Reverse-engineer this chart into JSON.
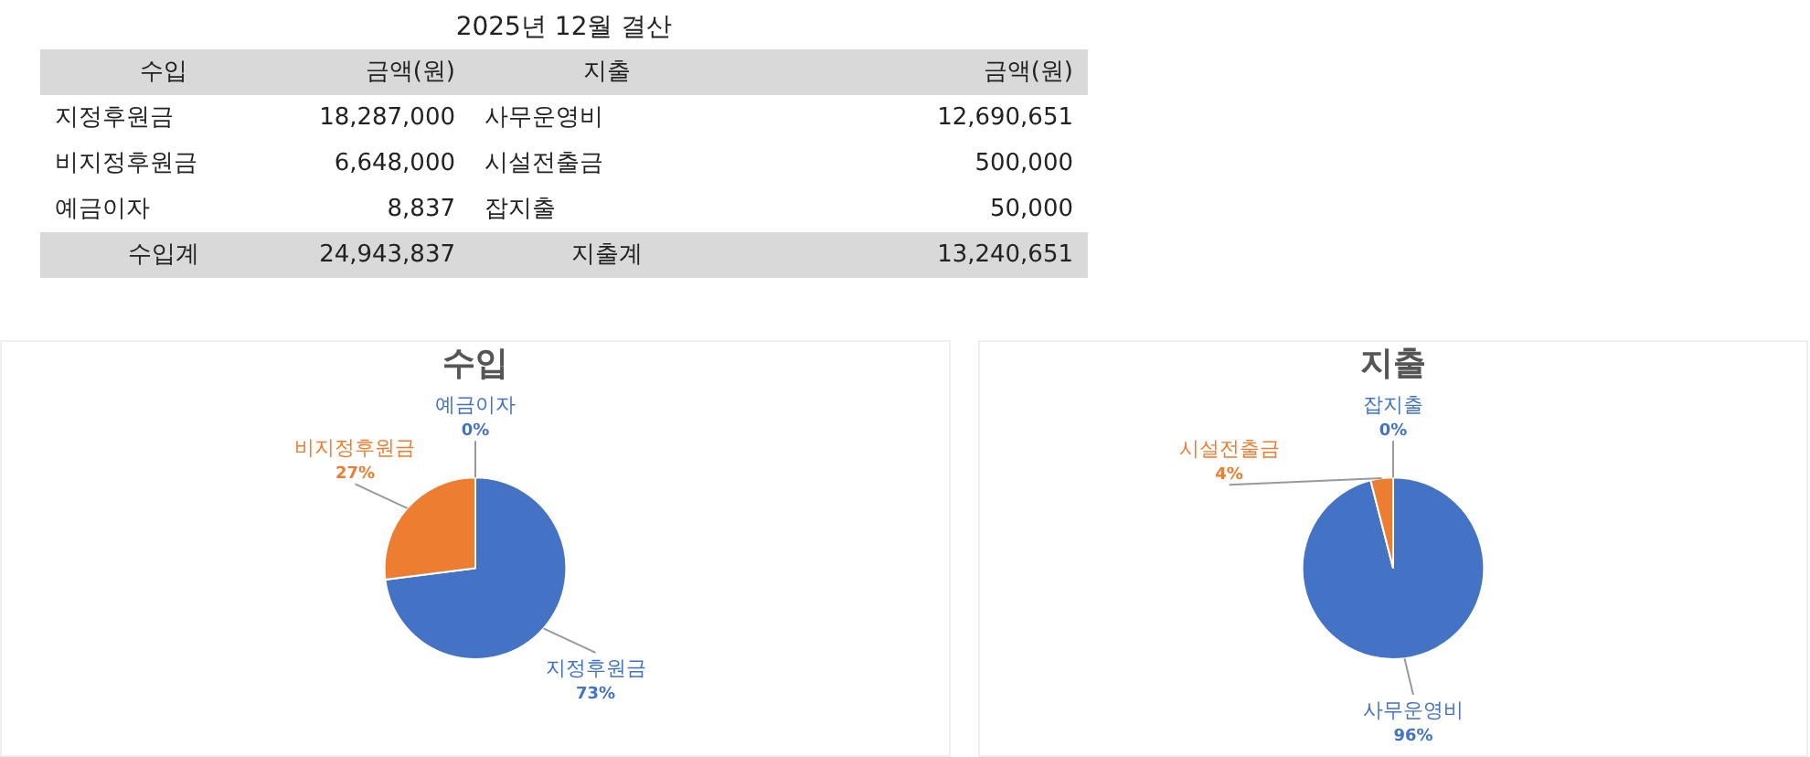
{
  "chart_data": [
    {
      "type": "other",
      "title": "2025년 12월 결산",
      "annotations": [
        "수입",
        "금액(원)",
        "지출",
        "금액(원)",
        "지정후원금",
        "18,287,000",
        "사무운영비",
        "12,690,651",
        "비지정후원금",
        "6,648,000",
        "시설전출금",
        "500,000",
        "예금이자",
        "8,837",
        "잡지출",
        "50,000",
        "수입계",
        "24,943,837",
        "지출계",
        "13,240,651"
      ]
    },
    {
      "type": "pie",
      "title": "수입",
      "categories": [
        "지정후원금",
        "비지정후원금",
        "예금이자"
      ],
      "values": [
        73,
        27,
        0
      ],
      "colors": [
        "#4472c4",
        "#ed7d31",
        "#a5a5a5"
      ],
      "value_labels": [
        "73%",
        "27%",
        "0%"
      ],
      "legend": false
    },
    {
      "type": "pie",
      "title": "지출",
      "categories": [
        "사무운영비",
        "시설전출금",
        "잡지출"
      ],
      "values": [
        96,
        4,
        0
      ],
      "colors": [
        "#4472c4",
        "#ed7d31",
        "#a5a5a5"
      ],
      "value_labels": [
        "96%",
        "4%",
        "0%"
      ],
      "legend": false
    }
  ]
}
